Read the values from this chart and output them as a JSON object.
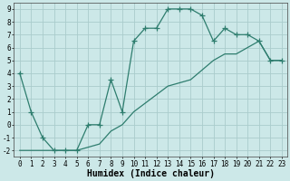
{
  "xlabel": "Humidex (Indice chaleur)",
  "bg_color": "#cce8e8",
  "grid_color": "#aacccc",
  "line_color": "#2e7d6e",
  "line1_x": [
    0,
    1,
    2,
    3,
    4,
    5,
    6,
    7,
    8,
    9,
    10,
    11,
    12,
    13,
    14,
    15,
    16,
    17,
    18,
    19,
    20,
    21,
    22,
    23
  ],
  "line1_y": [
    4,
    1,
    -1,
    -2,
    -2,
    -2,
    0,
    0,
    3.5,
    1,
    6.5,
    7.5,
    7.5,
    9,
    9,
    9,
    8.5,
    6.5,
    7.5,
    7,
    7,
    6.5,
    5,
    5
  ],
  "line2_x": [
    0,
    3,
    5,
    7,
    8,
    9,
    10,
    13,
    15,
    17,
    18,
    19,
    20,
    21,
    22,
    23
  ],
  "line2_y": [
    -2,
    -2,
    -2,
    -1.5,
    -0.5,
    0,
    1,
    3,
    3.5,
    5,
    5.5,
    5.5,
    6,
    6.5,
    5,
    5
  ],
  "xlim": [
    -0.5,
    23.5
  ],
  "ylim": [
    -2.5,
    9.5
  ],
  "xticks": [
    0,
    1,
    2,
    3,
    4,
    5,
    6,
    7,
    8,
    9,
    10,
    11,
    12,
    13,
    14,
    15,
    16,
    17,
    18,
    19,
    20,
    21,
    22,
    23
  ],
  "yticks": [
    -2,
    -1,
    0,
    1,
    2,
    3,
    4,
    5,
    6,
    7,
    8,
    9
  ],
  "marker": "+",
  "markersize": 4,
  "linewidth": 0.9,
  "fontsize_label": 7,
  "fontsize_tick": 5.5
}
